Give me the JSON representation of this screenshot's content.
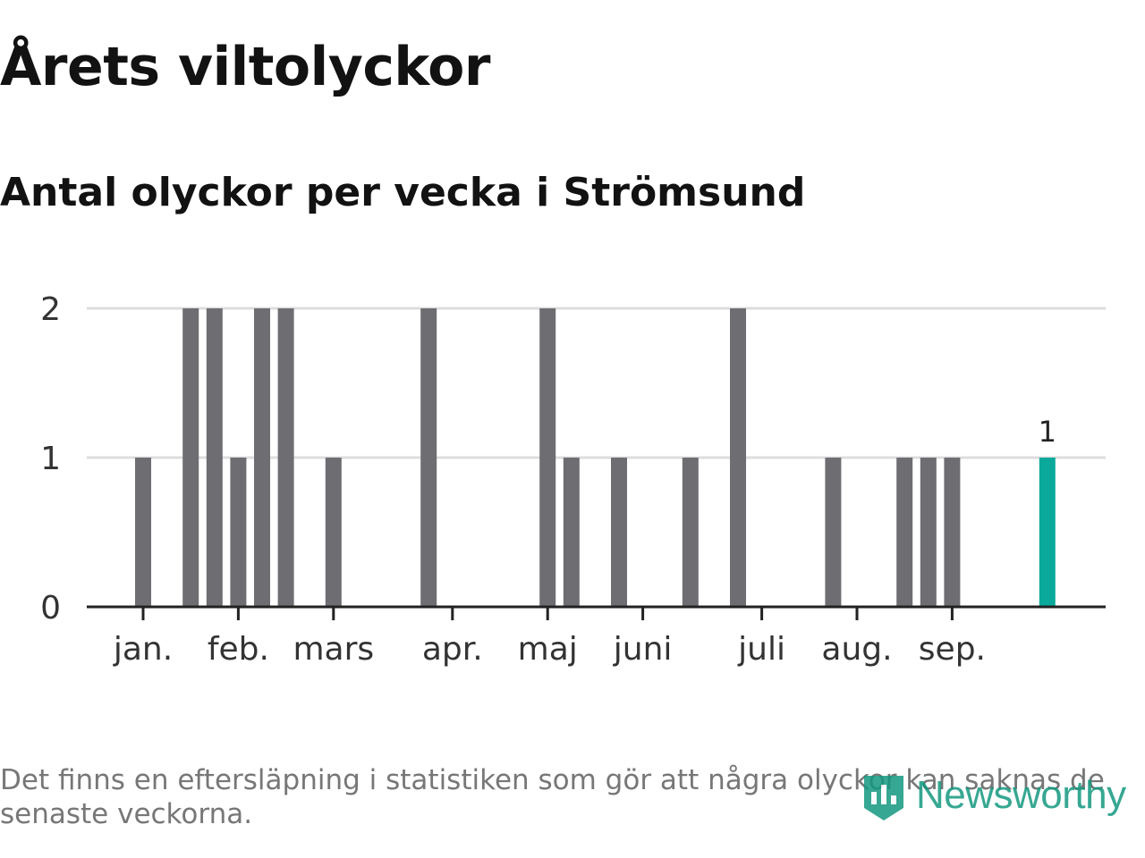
{
  "header": {
    "title": "Årets viltolyckor",
    "subtitle": "Antal olyckor per vecka i Strömsund"
  },
  "footer": {
    "note": "Det finns en eftersläpning i statistiken som gör att några olyckor kan saknas de senaste veckorna.",
    "logo_text": "Newsworthy"
  },
  "colors": {
    "bar": "#6e6d72",
    "highlight": "#0aa99b",
    "grid": "#dddddd",
    "axis": "#222222",
    "logo": "#13987f"
  },
  "chart_data": {
    "type": "bar",
    "title": "Antal olyckor per vecka i Strömsund",
    "xlabel": "",
    "ylabel": "",
    "ylim": [
      0,
      2
    ],
    "y_ticks": [
      "0",
      "1",
      "2"
    ],
    "grid": true,
    "x_tick_labels": [
      {
        "label": "jan.",
        "week": 1
      },
      {
        "label": "feb.",
        "week": 5
      },
      {
        "label": "mars",
        "week": 9
      },
      {
        "label": "apr.",
        "week": 14
      },
      {
        "label": "maj",
        "week": 18
      },
      {
        "label": "juni",
        "week": 22
      },
      {
        "label": "juli",
        "week": 27
      },
      {
        "label": "aug.",
        "week": 31
      },
      {
        "label": "sep.",
        "week": 35
      }
    ],
    "weeks": [
      1,
      2,
      3,
      4,
      5,
      6,
      7,
      8,
      9,
      10,
      11,
      12,
      13,
      14,
      15,
      16,
      17,
      18,
      19,
      20,
      21,
      22,
      23,
      24,
      25,
      26,
      27,
      28,
      29,
      30,
      31,
      32,
      33,
      34,
      35,
      36,
      37,
      38,
      39
    ],
    "values": [
      1,
      0,
      2,
      2,
      1,
      2,
      2,
      0,
      1,
      0,
      0,
      0,
      2,
      0,
      0,
      0,
      0,
      2,
      1,
      0,
      1,
      0,
      0,
      1,
      0,
      2,
      0,
      0,
      0,
      1,
      0,
      0,
      1,
      1,
      1,
      0,
      0,
      0,
      1
    ],
    "highlight_week": 39,
    "annotations": [
      {
        "week": 39,
        "text": "1"
      }
    ]
  }
}
